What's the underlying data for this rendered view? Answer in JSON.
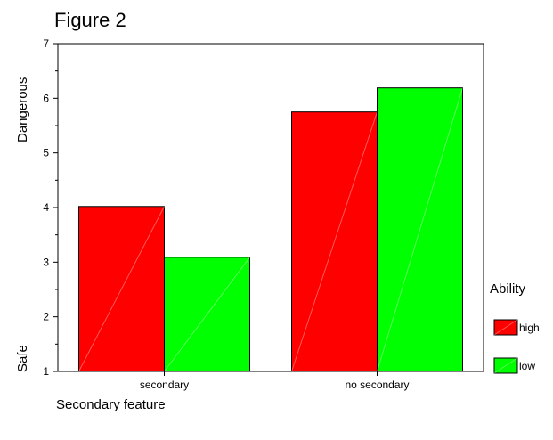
{
  "chart_data": {
    "type": "bar",
    "title": "Figure 2",
    "xlabel": "Secondary feature",
    "ylabel_top": "Dangerous",
    "ylabel_bottom": "Safe",
    "categories": [
      "secondary",
      "no secondary"
    ],
    "series": [
      {
        "name": "high",
        "values": [
          4.02,
          5.75
        ],
        "color": "#ff0000"
      },
      {
        "name": "low",
        "values": [
          3.09,
          6.19
        ],
        "color": "#00ff00"
      }
    ],
    "ylim": [
      1,
      7
    ],
    "yticks": [
      1,
      2,
      3,
      4,
      5,
      6,
      7
    ],
    "legend": {
      "title": "Ability",
      "placement": "right"
    },
    "grid": false
  }
}
